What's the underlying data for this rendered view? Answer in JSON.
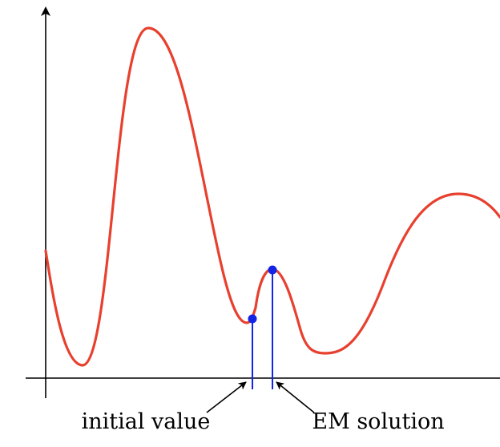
{
  "diagram": {
    "labels": {
      "initial_value": "initial value",
      "em_solution": "EM solution"
    },
    "colors": {
      "curve": "#e8402e",
      "markers": "#1324e6",
      "axes": "#000000"
    }
  }
}
